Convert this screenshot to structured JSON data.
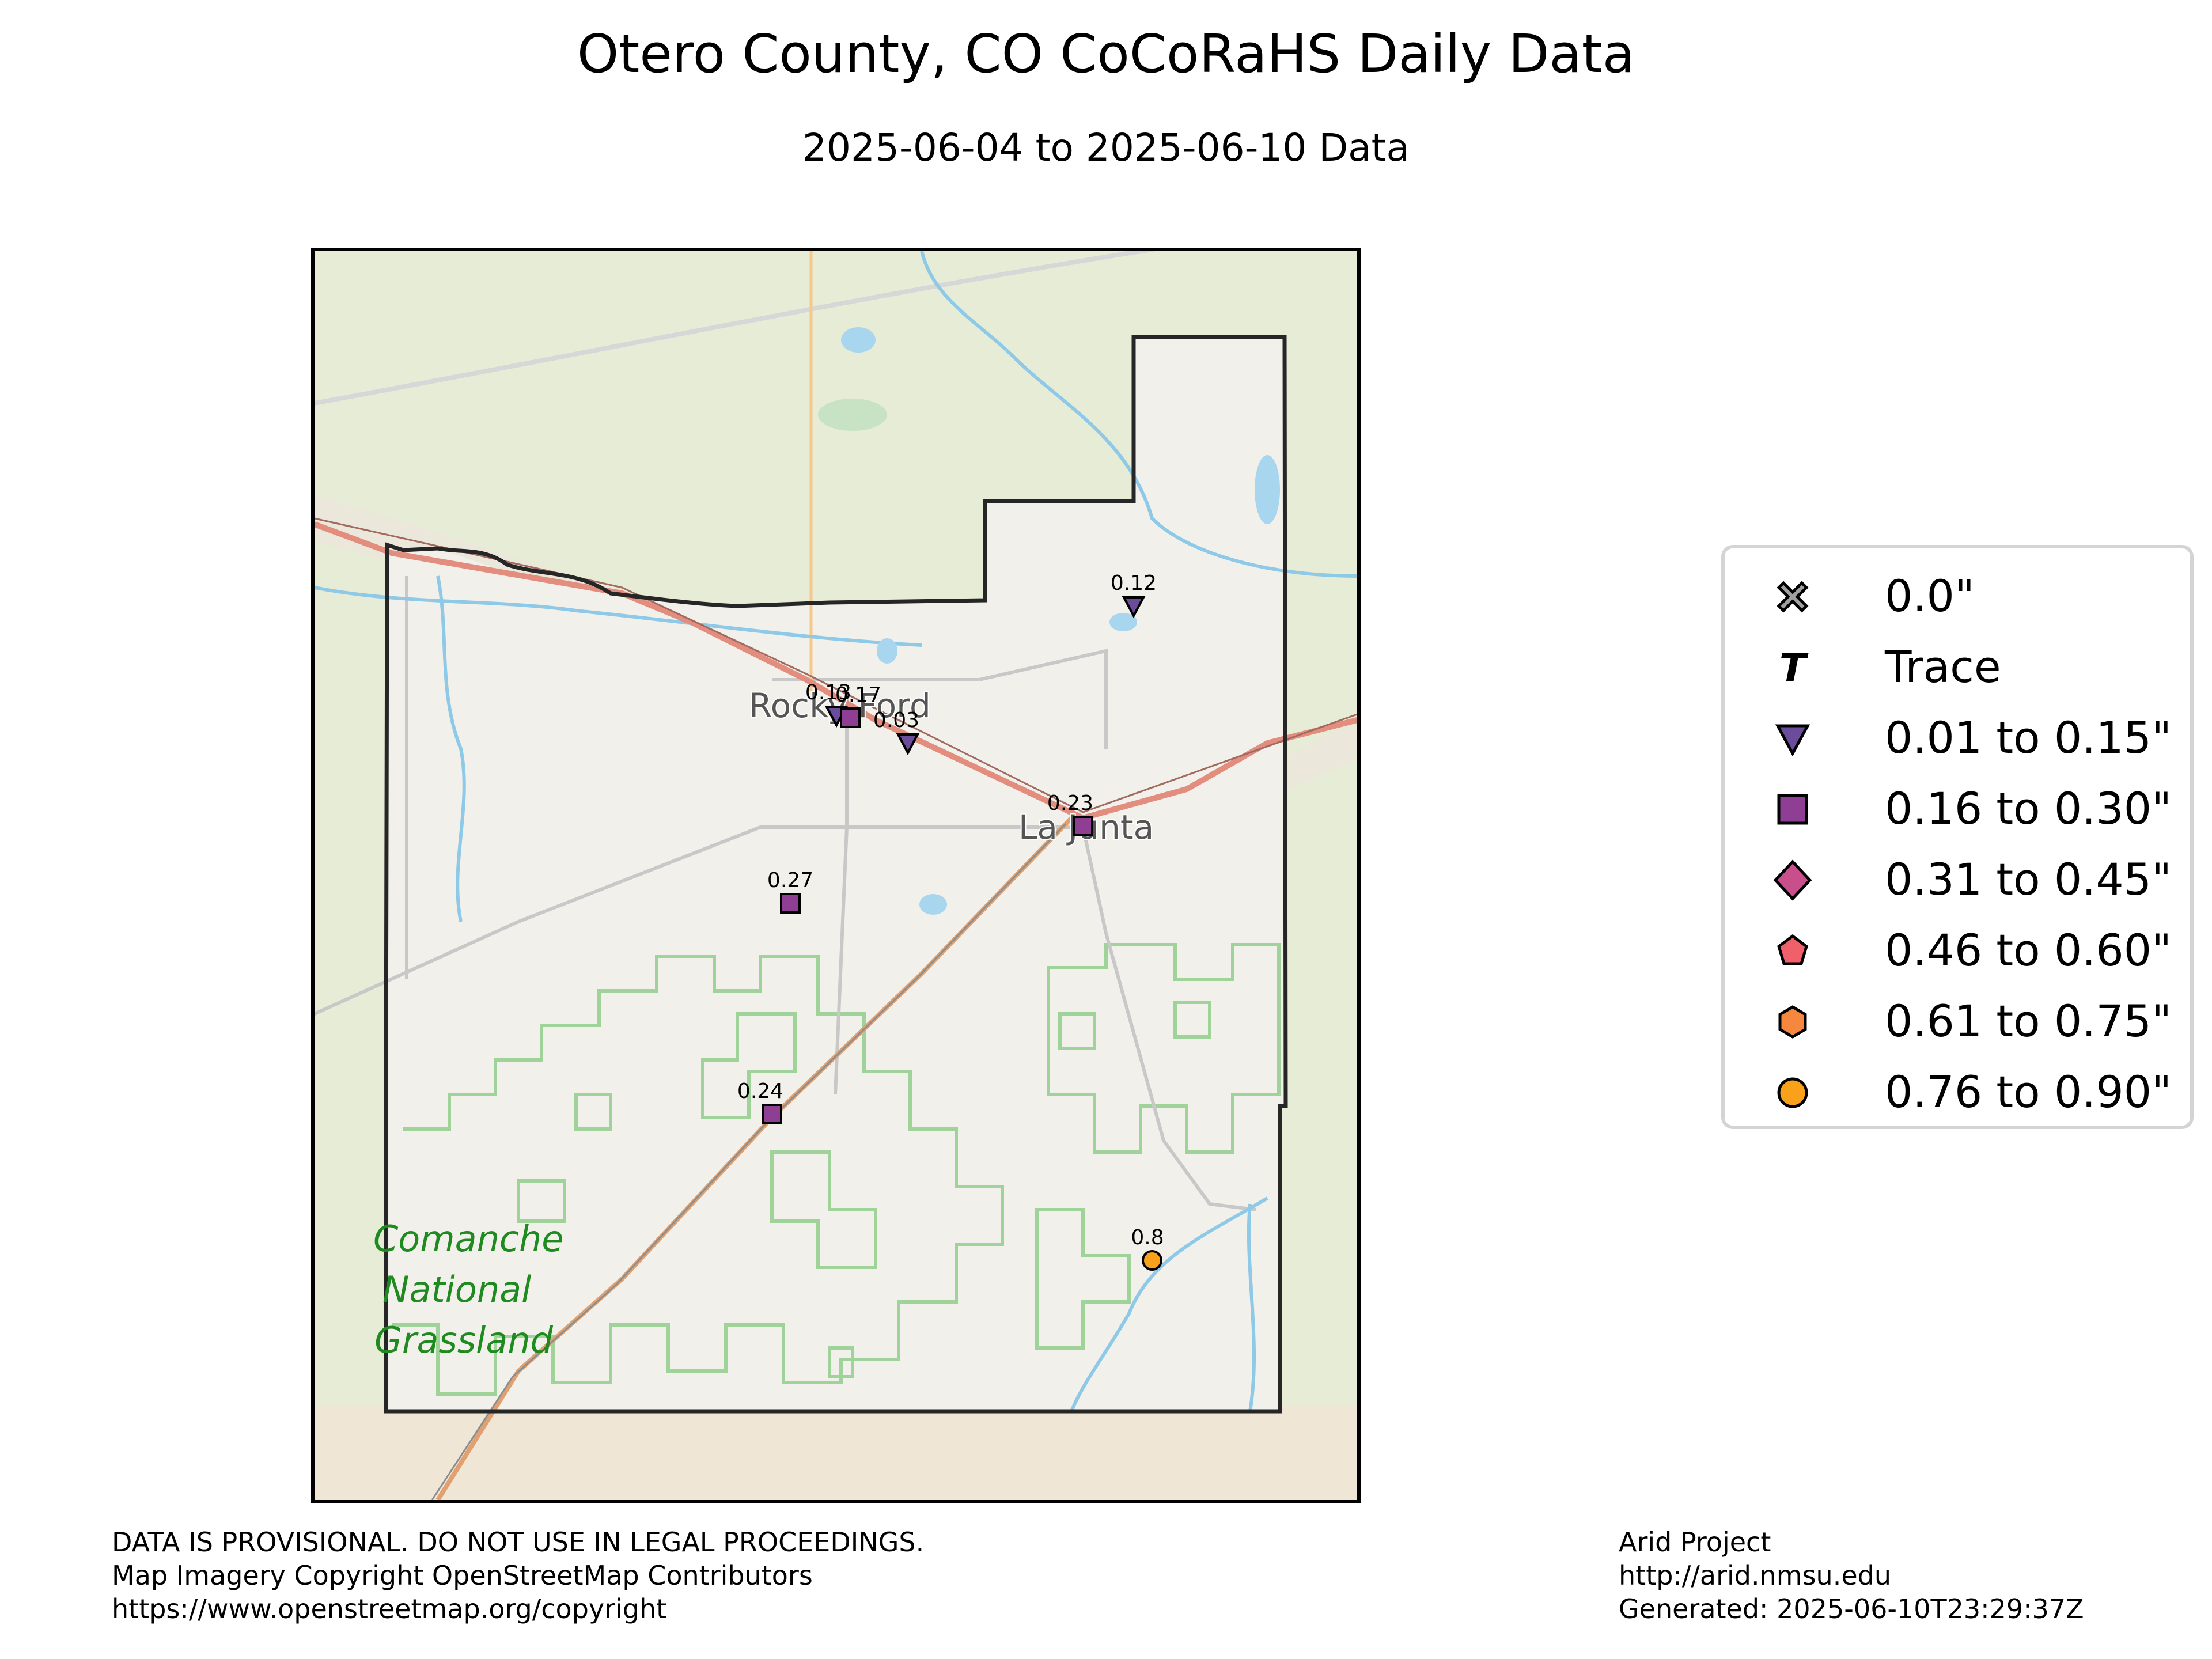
{
  "title": "Otero County, CO CoCoRaHS Daily Data",
  "subtitle": "2025-06-04 to 2025-06-10 Data",
  "map_labels": {
    "rocky_ford": "Rocky Ford",
    "la_junta": "La Junta",
    "grassland_line1": "Comanche",
    "grassland_line2": "National",
    "grassland_line3": "Grassland"
  },
  "stations": [
    {
      "label": "0.12",
      "value": 0.12,
      "marker": "triangle"
    },
    {
      "label": "0.13",
      "value": 0.13,
      "marker": "triangle"
    },
    {
      "label": "0.17",
      "value": 0.17,
      "marker": "square"
    },
    {
      "label": "0.03",
      "value": 0.03,
      "marker": "triangle"
    },
    {
      "label": "0.23",
      "value": 0.23,
      "marker": "square"
    },
    {
      "label": "0.27",
      "value": 0.27,
      "marker": "square"
    },
    {
      "label": "0.24",
      "value": 0.24,
      "marker": "square"
    },
    {
      "label": "0.8",
      "value": 0.8,
      "marker": "circle"
    }
  ],
  "legend": {
    "items": [
      {
        "label": "0.0\"",
        "marker": "x-icon",
        "color": "#a0a0a0"
      },
      {
        "label": "Trace",
        "marker": "t-icon",
        "color": "#000000"
      },
      {
        "label": "0.01 to 0.15\"",
        "marker": "triangle-down-icon",
        "color": "#6b4c9a"
      },
      {
        "label": "0.16 to 0.30\"",
        "marker": "square-icon",
        "color": "#8e3f93"
      },
      {
        "label": "0.31 to 0.45\"",
        "marker": "diamond-icon",
        "color": "#c94f8c"
      },
      {
        "label": "0.46 to 0.60\"",
        "marker": "pentagon-icon",
        "color": "#f0606a"
      },
      {
        "label": "0.61 to 0.75\"",
        "marker": "hexagon-icon",
        "color": "#f5873e"
      },
      {
        "label": "0.76 to 0.90\"",
        "marker": "circle-icon",
        "color": "#f9a11b"
      }
    ]
  },
  "footer": {
    "left_line1": "DATA IS PROVISIONAL. DO NOT USE IN LEGAL PROCEEDINGS.",
    "left_line2": "Map Imagery Copyright OpenStreetMap Contributors",
    "left_line3": "https://www.openstreetmap.org/copyright",
    "right_line1": "Arid Project",
    "right_line2": "http://arid.nmsu.edu",
    "right_line3": "Generated: 2025-06-10T23:29:37Z"
  }
}
